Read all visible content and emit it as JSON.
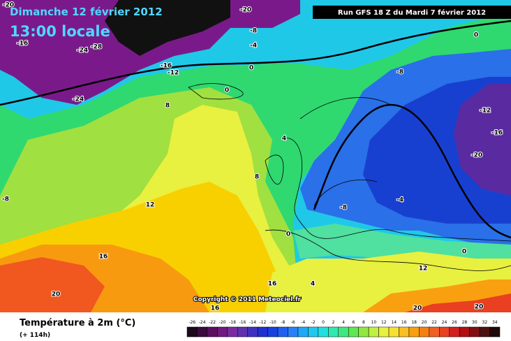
{
  "header": {
    "date": "Dimanche 12 février 2012",
    "time": "13:00 locale",
    "run": "Run GFS 18 Z du Mardi 7 février 2012"
  },
  "copyright": "Copyright © 2011 Meteociel.fr",
  "footer": {
    "parameter": "Température à 2m (°C)",
    "lead": "(+ 114h)"
  },
  "legend": {
    "ticks": [
      -26,
      -24,
      -22,
      -20,
      -18,
      -16,
      -14,
      -12,
      -10,
      -8,
      -6,
      -4,
      -2,
      0,
      2,
      4,
      6,
      8,
      10,
      12,
      14,
      16,
      18,
      20,
      22,
      24,
      26,
      28,
      30,
      32,
      34
    ],
    "colors": [
      "#1a0a1a",
      "#3a0a40",
      "#5a1060",
      "#701880",
      "#7a2aa0",
      "#6030b0",
      "#4030c0",
      "#2030d0",
      "#1840e0",
      "#2060f0",
      "#2a80f8",
      "#20a8f8",
      "#20c8f0",
      "#20e0e0",
      "#30e8b0",
      "#40e880",
      "#60e850",
      "#90e840",
      "#c0f040",
      "#e8f040",
      "#f8e030",
      "#f8c020",
      "#f8a010",
      "#f88010",
      "#f06020",
      "#e84020",
      "#d02020",
      "#b01010",
      "#801010",
      "#501010",
      "#200808"
    ]
  },
  "contour_labels": [
    -20,
    -20,
    -16,
    -24,
    -28,
    -24,
    -16,
    -12,
    -8,
    -4,
    0,
    0,
    0,
    8,
    -8,
    -12,
    -16,
    -20,
    -8,
    12,
    8,
    4,
    -4,
    -8,
    0,
    16,
    20,
    16,
    20,
    20,
    12,
    0,
    4,
    16
  ]
}
